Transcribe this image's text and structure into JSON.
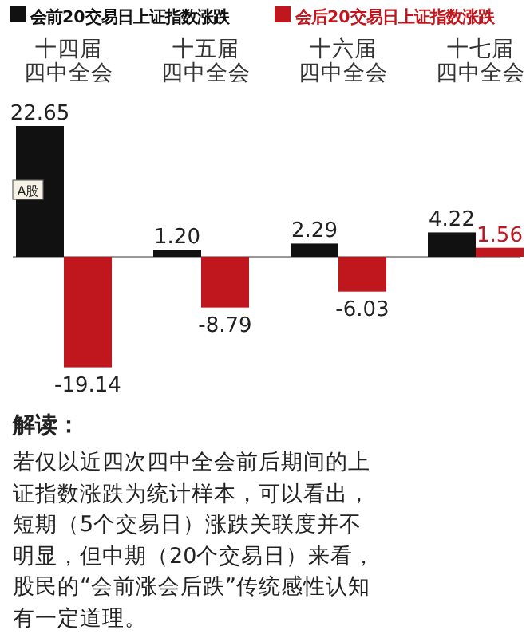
{
  "chart_data": {
    "type": "bar",
    "categories": [
      "十四届四中全会",
      "十五届四中全会",
      "十六届四中全会",
      "十七届四中全会"
    ],
    "series": [
      {
        "name": "会前20交易日上证指数涨跌",
        "color": "#111111",
        "values": [
          22.65,
          1.2,
          2.29,
          4.22
        ],
        "value_labels": [
          "22.65",
          "1.20",
          "2.29",
          "4.22"
        ]
      },
      {
        "name": "会后20交易日上证指数涨跌",
        "color": "#c0161e",
        "values": [
          -19.14,
          -8.79,
          -6.03,
          1.56
        ]
      }
    ],
    "data_labels": true,
    "legend": "top",
    "annotations": [
      "A股",
      "解读：",
      "若仅以近四次四中全会前后期间的上证指数涨跌为统计样本，可以看出，短期（5个交易日）涨跌关联度并不明显，但中期（20个交易日）来看，股民的“会前涨会后跌”传统感性认知有一定道理。"
    ]
  }
}
